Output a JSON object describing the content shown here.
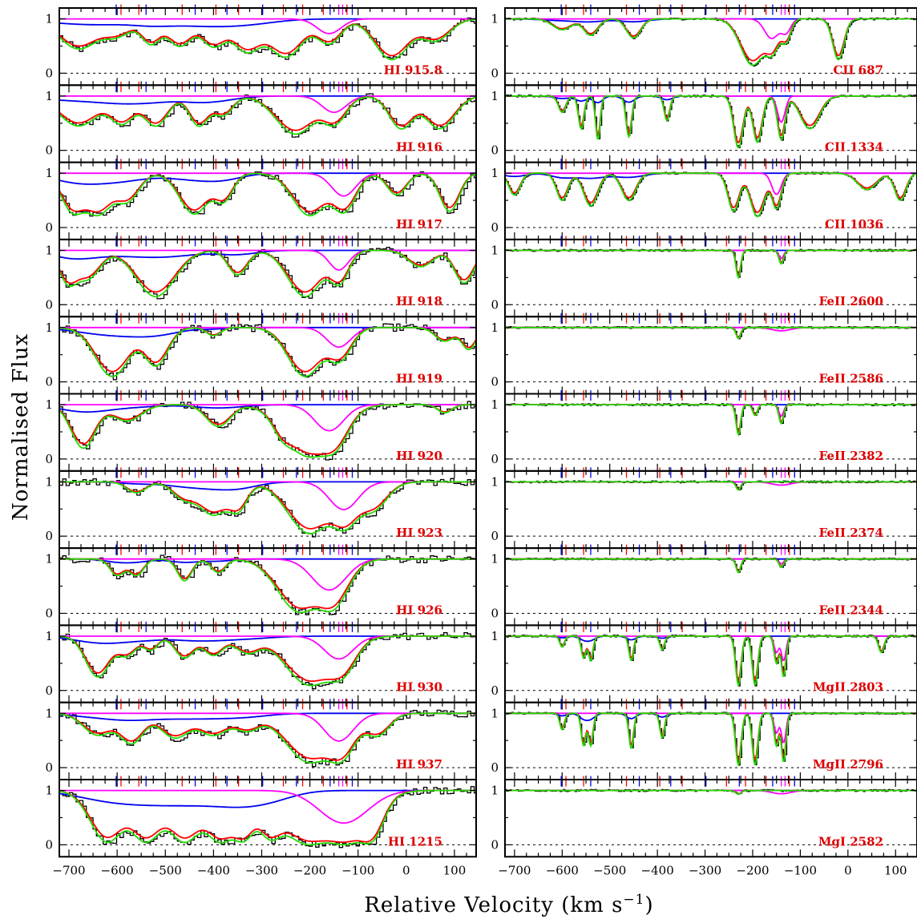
{
  "figure": {
    "ylabel": "Normalised Flux",
    "xlabel_main": "Relative Velocity (km s",
    "xlabel_sup": "−1",
    "xlabel_end": ")"
  },
  "colors": {
    "data": "#000000",
    "model_red": "#ff0000",
    "model_green": "#22dd00",
    "model_blue": "#0000ee",
    "model_magenta": "#ff00ff",
    "label": "#e00000"
  },
  "chart_data": {
    "type": "line",
    "xlim": [
      -720,
      145
    ],
    "ylim": [
      -0.22,
      1.2
    ],
    "x_ticks": [
      -700,
      -600,
      -500,
      -400,
      -300,
      -200,
      -100,
      0,
      100
    ],
    "x_tick_labels": [
      "−700",
      "−600",
      "−500",
      "−400",
      "−300",
      "−200",
      "−100",
      "0",
      "100"
    ],
    "y_ticks": [
      0,
      1
    ],
    "y_tick_labels": [
      "0",
      "1"
    ],
    "component_ticks_top_red": [
      -592,
      -555,
      -465,
      -395,
      -348,
      -255,
      -215,
      -172,
      -123
    ],
    "component_ticks_top_blue": [
      -602,
      -540,
      -438,
      -372,
      -298,
      -228,
      -158,
      -112
    ],
    "component_ticks_top_magenta": [
      -140,
      -132
    ],
    "columns": [
      {
        "panels": [
          {
            "ion": "HI 915.8",
            "features": [
              [
                -680,
                0.55,
                40
              ],
              [
                -600,
                0.3,
                30
              ],
              [
                -530,
                0.45,
                20
              ],
              [
                -470,
                0.5,
                25
              ],
              [
                -400,
                0.5,
                25
              ],
              [
                -330,
                0.6,
                30
              ],
              [
                -250,
                0.7,
                35
              ],
              [
                -160,
                0.45,
                25
              ],
              [
                -30,
                0.75,
                35
              ],
              [
                60,
                0.4,
                30
              ]
            ]
          },
          {
            "ion": "HI 916",
            "features": [
              [
                -680,
                0.55,
                40
              ],
              [
                -590,
                0.5,
                25
              ],
              [
                -520,
                0.55,
                25
              ],
              [
                -430,
                0.55,
                20
              ],
              [
                -380,
                0.35,
                20
              ],
              [
                -230,
                0.7,
                40
              ],
              [
                -150,
                0.5,
                25
              ],
              [
                -10,
                0.6,
                25
              ],
              [
                70,
                0.6,
                30
              ]
            ]
          },
          {
            "ion": "HI 917",
            "features": [
              [
                -690,
                0.7,
                25
              ],
              [
                -640,
                0.75,
                30
              ],
              [
                -580,
                0.5,
                25
              ],
              [
                -440,
                0.75,
                30
              ],
              [
                -380,
                0.5,
                20
              ],
              [
                -200,
                0.78,
                35
              ],
              [
                -130,
                0.7,
                25
              ],
              [
                -20,
                0.4,
                20
              ],
              [
                90,
                0.7,
                20
              ]
            ]
          },
          {
            "ion": "HI 918",
            "features": [
              [
                -700,
                0.6,
                20
              ],
              [
                -660,
                0.5,
                25
              ],
              [
                -520,
                0.85,
                40
              ],
              [
                -350,
                0.45,
                20
              ],
              [
                -210,
                0.85,
                35
              ],
              [
                -140,
                0.6,
                20
              ],
              [
                30,
                0.3,
                25
              ],
              [
                120,
                0.6,
                20
              ]
            ]
          },
          {
            "ion": "HI 919",
            "features": [
              [
                -610,
                0.9,
                35
              ],
              [
                -520,
                0.7,
                25
              ],
              [
                -400,
                0.15,
                15
              ],
              [
                -210,
                0.9,
                35
              ],
              [
                -140,
                0.6,
                25
              ],
              [
                80,
                0.25,
                20
              ],
              [
                130,
                0.4,
                15
              ]
            ]
          },
          {
            "ion": "HI 920",
            "features": [
              [
                -670,
                0.8,
                25
              ],
              [
                -580,
                0.3,
                30
              ],
              [
                -390,
                0.4,
                25
              ],
              [
                -250,
                0.4,
                20
              ],
              [
                -200,
                0.95,
                50
              ],
              [
                -160,
                0.8,
                30
              ],
              [
                80,
                0.15,
                15
              ]
            ]
          },
          {
            "ion": "HI 923",
            "features": [
              [
                -560,
                0.2,
                20
              ],
              [
                -460,
                0.3,
                25
              ],
              [
                -400,
                0.6,
                30
              ],
              [
                -350,
                0.5,
                20
              ],
              [
                -200,
                0.95,
                45
              ],
              [
                -130,
                0.85,
                30
              ],
              [
                -70,
                0.5,
                30
              ]
            ]
          },
          {
            "ion": "HI 926",
            "features": [
              [
                -600,
                0.3,
                15
              ],
              [
                -560,
                0.3,
                15
              ],
              [
                -460,
                0.4,
                15
              ],
              [
                -390,
                0.25,
                15
              ],
              [
                -220,
                0.98,
                45
              ],
              [
                -160,
                0.95,
                35
              ]
            ]
          },
          {
            "ion": "HI 930",
            "features": [
              [
                -640,
                0.75,
                25
              ],
              [
                -580,
                0.35,
                20
              ],
              [
                -530,
                0.25,
                15
              ],
              [
                -460,
                0.4,
                20
              ],
              [
                -400,
                0.35,
                20
              ],
              [
                -330,
                0.3,
                25
              ],
              [
                -200,
                0.9,
                50
              ],
              [
                -140,
                0.7,
                30
              ]
            ]
          },
          {
            "ion": "HI 937",
            "features": [
              [
                -640,
                0.4,
                30
              ],
              [
                -570,
                0.55,
                25
              ],
              [
                -480,
                0.45,
                30
              ],
              [
                -400,
                0.4,
                30
              ],
              [
                -330,
                0.3,
                25
              ],
              [
                -200,
                0.9,
                50
              ],
              [
                -140,
                0.85,
                30
              ],
              [
                -60,
                0.4,
                25
              ]
            ]
          },
          {
            "ion": "HI 1215",
            "features": [
              [
                -620,
                0.95,
                35
              ],
              [
                -540,
                0.95,
                35
              ],
              [
                -460,
                0.95,
                35
              ],
              [
                -385,
                0.95,
                35
              ],
              [
                -340,
                0.9,
                25
              ],
              [
                -280,
                0.85,
                25
              ],
              [
                -200,
                1.0,
                60
              ],
              [
                -130,
                1.0,
                50
              ],
              [
                -80,
                0.95,
                25
              ]
            ]
          }
        ]
      },
      {
        "panels": [
          {
            "ion": "CII 687",
            "features": [
              [
                -600,
                0.2,
                20
              ],
              [
                -540,
                0.3,
                15
              ],
              [
                -450,
                0.35,
                15
              ],
              [
                -200,
                0.85,
                25
              ],
              [
                -160,
                0.6,
                15
              ],
              [
                -130,
                0.4,
                10
              ],
              [
                -20,
                0.75,
                12
              ]
            ]
          },
          {
            "ion": "CII 1334",
            "features": [
              [
                -600,
                0.3,
                8
              ],
              [
                -560,
                0.6,
                6
              ],
              [
                -525,
                0.8,
                5
              ],
              [
                -460,
                0.75,
                6
              ],
              [
                -380,
                0.45,
                6
              ],
              [
                -230,
                0.95,
                10
              ],
              [
                -190,
                0.85,
                10
              ],
              [
                -140,
                0.8,
                8
              ],
              [
                -80,
                0.6,
                20
              ]
            ]
          },
          {
            "ion": "CII 1036",
            "features": [
              [
                -700,
                0.4,
                12
              ],
              [
                -600,
                0.5,
                12
              ],
              [
                -540,
                0.6,
                15
              ],
              [
                -460,
                0.5,
                15
              ],
              [
                -240,
                0.7,
                12
              ],
              [
                -190,
                0.8,
                15
              ],
              [
                -150,
                0.65,
                10
              ],
              [
                40,
                0.3,
                20
              ],
              [
                110,
                0.5,
                12
              ]
            ]
          },
          {
            "ion": "FeII 2600",
            "features": [
              [
                -230,
                0.5,
                5
              ],
              [
                -140,
                0.25,
                5
              ]
            ]
          },
          {
            "ion": "FeII 2586",
            "features": [
              [
                -230,
                0.2,
                5
              ]
            ]
          },
          {
            "ion": "FeII 2382",
            "features": [
              [
                -230,
                0.55,
                5
              ],
              [
                -195,
                0.2,
                5
              ],
              [
                -140,
                0.35,
                5
              ]
            ]
          },
          {
            "ion": "FeII 2374",
            "features": [
              [
                -230,
                0.15,
                5
              ]
            ]
          },
          {
            "ion": "FeII 2344",
            "features": [
              [
                -230,
                0.25,
                5
              ],
              [
                -140,
                0.15,
                5
              ]
            ]
          },
          {
            "ion": "MgII 2803",
            "features": [
              [
                -600,
                0.2,
                5
              ],
              [
                -555,
                0.4,
                5
              ],
              [
                -540,
                0.45,
                5
              ],
              [
                -455,
                0.45,
                5
              ],
              [
                -390,
                0.25,
                5
              ],
              [
                -230,
                0.9,
                6
              ],
              [
                -195,
                0.9,
                6
              ],
              [
                -150,
                0.5,
                5
              ],
              [
                -135,
                0.75,
                5
              ],
              [
                70,
                0.3,
                6
              ]
            ]
          },
          {
            "ion": "MgII 2796",
            "features": [
              [
                -600,
                0.3,
                5
              ],
              [
                -555,
                0.6,
                5
              ],
              [
                -540,
                0.6,
                5
              ],
              [
                -455,
                0.65,
                5
              ],
              [
                -390,
                0.45,
                5
              ],
              [
                -230,
                0.95,
                6
              ],
              [
                -195,
                0.95,
                6
              ],
              [
                -150,
                0.6,
                5
              ],
              [
                -135,
                0.9,
                5
              ]
            ]
          },
          {
            "ion": "MgI 2582",
            "features": [
              [
                -230,
                0.07,
                6
              ]
            ]
          }
        ]
      }
    ]
  }
}
